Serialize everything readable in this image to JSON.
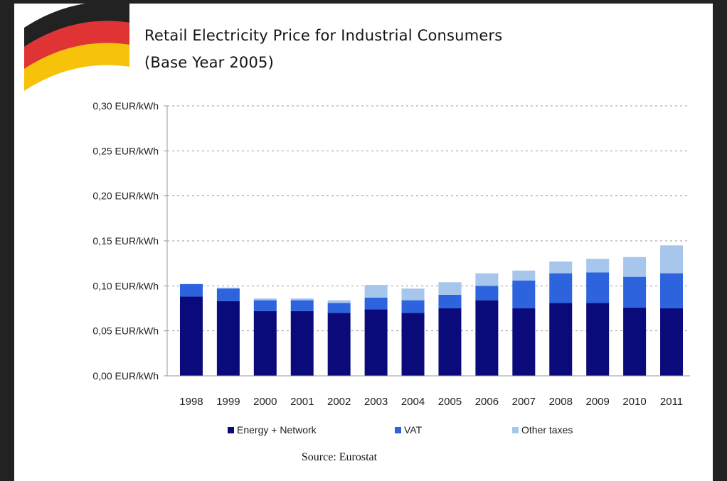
{
  "title_lines": [
    "Retail Electricity Price for Industrial Consumers",
    "(Base Year 2005)"
  ],
  "source": "Source: Eurostat",
  "flag_icon": "germany-flag-icon",
  "chart_data": {
    "type": "bar",
    "stacked": true,
    "title": "Retail Electricity Price for Industrial Consumers (Base Year 2005)",
    "categories": [
      "1998",
      "1999",
      "2000",
      "2001",
      "2002",
      "2003",
      "2004",
      "2005",
      "2006",
      "2007",
      "2008",
      "2009",
      "2010",
      "2011"
    ],
    "series": [
      {
        "name": "Energy + Network",
        "color": "#0b0a7a",
        "values": [
          0.088,
          0.083,
          0.072,
          0.072,
          0.07,
          0.074,
          0.07,
          0.075,
          0.084,
          0.075,
          0.081,
          0.081,
          0.076,
          0.075
        ]
      },
      {
        "name": "VAT",
        "color": "#2d63dc",
        "values": [
          0.014,
          0.014,
          0.012,
          0.012,
          0.011,
          0.013,
          0.014,
          0.015,
          0.016,
          0.031,
          0.033,
          0.034,
          0.034,
          0.039
        ]
      },
      {
        "name": "Other taxes",
        "color": "#a6c6ec",
        "values": [
          0.0,
          0.001,
          0.002,
          0.002,
          0.003,
          0.014,
          0.013,
          0.014,
          0.014,
          0.011,
          0.013,
          0.015,
          0.022,
          0.031
        ]
      }
    ],
    "yticks": [
      "0,00 EUR/kWh",
      "0,05 EUR/kWh",
      "0,10 EUR/kWh",
      "0,15 EUR/kWh",
      "0,20 EUR/kWh",
      "0,25 EUR/kWh",
      "0,30 EUR/kWh"
    ],
    "ylim": [
      0,
      0.3
    ],
    "grid": "horizontal dotted",
    "legend_position": "bottom"
  }
}
